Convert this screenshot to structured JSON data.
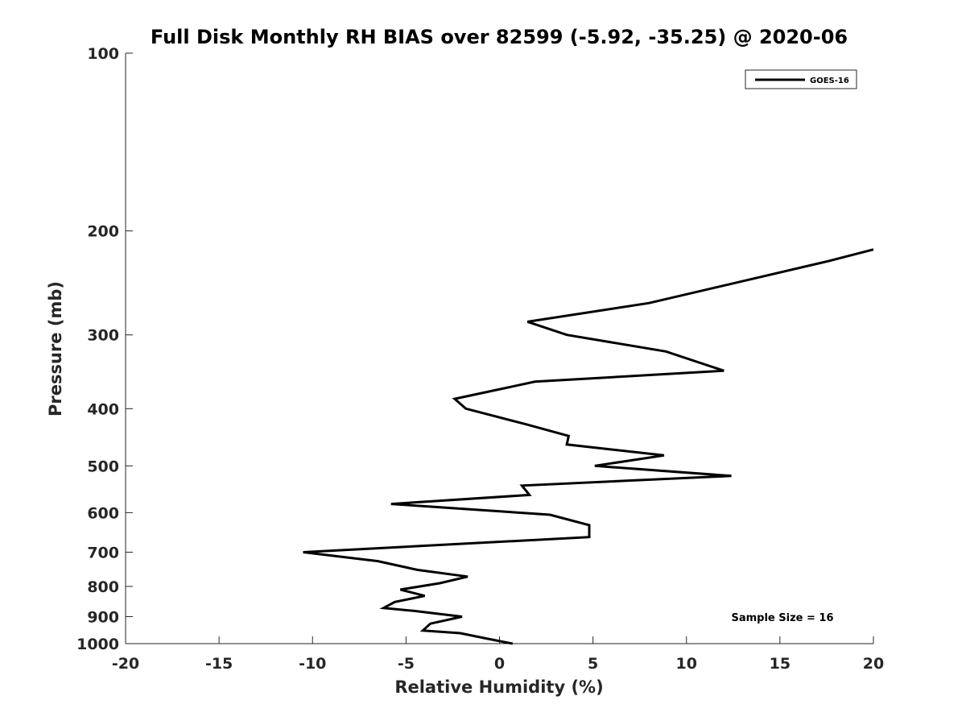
{
  "chart_data": {
    "type": "line",
    "title": "Full Disk Monthly RH BIAS over 82599 (-5.92, -35.25) @ 2020-06",
    "xlabel": "Relative Humidity (%)",
    "ylabel": "Pressure (mb)",
    "xlim": [
      -20,
      20
    ],
    "ylim": [
      100,
      1000
    ],
    "y_scale": "log",
    "y_reversed": true,
    "x_ticks": [
      "-20",
      "-15",
      "-10",
      "-5",
      "0",
      "5",
      "10",
      "15",
      "20"
    ],
    "y_ticks": [
      "100",
      "200",
      "300",
      "400",
      "500",
      "600",
      "700",
      "800",
      "900",
      "1000"
    ],
    "grid": false,
    "legend_position": "top-right",
    "series": [
      {
        "name": "GOES-16",
        "color": "#000000",
        "points": [
          {
            "x": 20.0,
            "y": 215
          },
          {
            "x": 17.6,
            "y": 225
          },
          {
            "x": 8.0,
            "y": 265
          },
          {
            "x": 1.5,
            "y": 285
          },
          {
            "x": 3.6,
            "y": 300
          },
          {
            "x": 8.9,
            "y": 320
          },
          {
            "x": 12.0,
            "y": 345
          },
          {
            "x": 1.9,
            "y": 360
          },
          {
            "x": -2.4,
            "y": 385
          },
          {
            "x": -1.8,
            "y": 400
          },
          {
            "x": 1.4,
            "y": 425
          },
          {
            "x": 3.7,
            "y": 445
          },
          {
            "x": 3.6,
            "y": 460
          },
          {
            "x": 8.8,
            "y": 480
          },
          {
            "x": 5.1,
            "y": 500
          },
          {
            "x": 12.4,
            "y": 520
          },
          {
            "x": 1.2,
            "y": 540
          },
          {
            "x": 1.6,
            "y": 560
          },
          {
            "x": -5.8,
            "y": 580
          },
          {
            "x": 2.7,
            "y": 605
          },
          {
            "x": 4.8,
            "y": 630
          },
          {
            "x": 4.8,
            "y": 660
          },
          {
            "x": -10.5,
            "y": 700
          },
          {
            "x": -6.5,
            "y": 725
          },
          {
            "x": -4.4,
            "y": 750
          },
          {
            "x": -1.7,
            "y": 770
          },
          {
            "x": -3.2,
            "y": 790
          },
          {
            "x": -5.3,
            "y": 810
          },
          {
            "x": -4.0,
            "y": 830
          },
          {
            "x": -5.6,
            "y": 850
          },
          {
            "x": -6.2,
            "y": 870
          },
          {
            "x": -4.6,
            "y": 880
          },
          {
            "x": -2.0,
            "y": 900
          },
          {
            "x": -3.7,
            "y": 925
          },
          {
            "x": -4.1,
            "y": 950
          },
          {
            "x": -2.1,
            "y": 960
          },
          {
            "x": -0.7,
            "y": 980
          },
          {
            "x": 0.7,
            "y": 1000
          }
        ]
      }
    ],
    "annotation": "Sample Size = 16"
  }
}
